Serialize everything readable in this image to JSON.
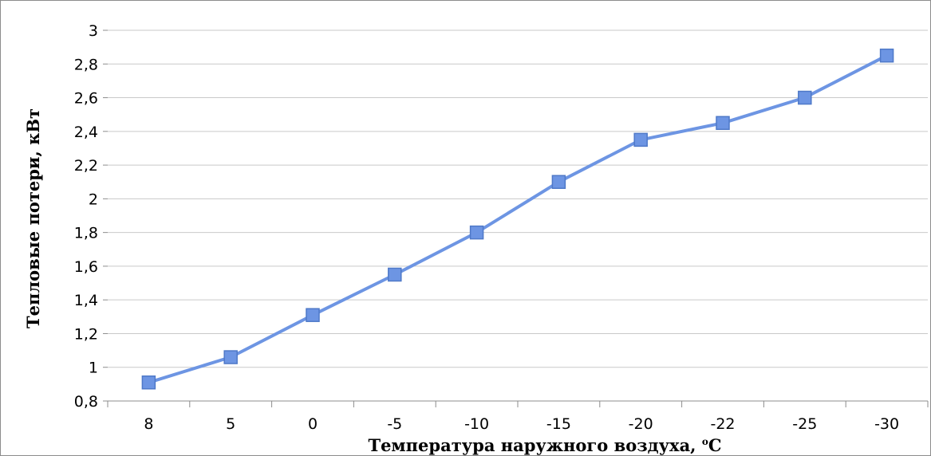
{
  "chart_data": {
    "type": "line",
    "title": "",
    "xlabel": "Температура наружного воздуха, ",
    "xlabel_unit_sup": "o",
    "xlabel_unit": "C",
    "ylabel": "Тепловые потери, кВт",
    "categories": [
      "8",
      "5",
      "0",
      "-5",
      "-10",
      "-15",
      "-20",
      "-22",
      "-25",
      "-30"
    ],
    "series": [
      {
        "values": [
          0.91,
          1.06,
          1.31,
          1.55,
          1.8,
          2.1,
          2.35,
          2.45,
          2.6,
          2.85
        ]
      }
    ],
    "ylim": [
      0.8,
      3
    ],
    "yticks": [
      "0,8",
      "1",
      "1,2",
      "1,4",
      "1,6",
      "1,8",
      "2",
      "2,2",
      "2,4",
      "2,6",
      "2,8",
      "3"
    ],
    "grid": true,
    "marker": "square",
    "colors": {
      "line": "#6d95e3",
      "marker_fill": "#6d95e3",
      "marker_stroke": "#4f79c8",
      "grid": "#c9c9c9",
      "axis": "#8c8c8c"
    }
  }
}
